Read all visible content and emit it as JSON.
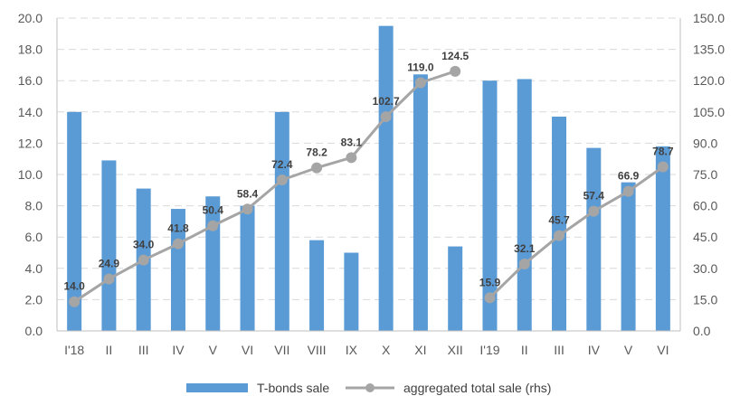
{
  "chart_data": {
    "type": "bar",
    "categories": [
      "I'18",
      "II",
      "III",
      "IV",
      "V",
      "VI",
      "VII",
      "VIII",
      "IX",
      "X",
      "XI",
      "XII",
      "I'19",
      "II",
      "III",
      "IV",
      "V",
      "VI"
    ],
    "series": [
      {
        "name": "T-bonds sale",
        "type": "bar",
        "axis": "left",
        "color": "#5b9bd5",
        "values": [
          14.0,
          10.9,
          9.1,
          7.8,
          8.6,
          8.0,
          14.0,
          5.8,
          5.0,
          19.5,
          16.4,
          5.4,
          16.0,
          16.1,
          13.7,
          11.7,
          9.5,
          11.8
        ]
      },
      {
        "name": "aggregated total sale (rhs)",
        "type": "line",
        "axis": "right",
        "color": "#a5a5a5",
        "values": [
          14.0,
          24.9,
          34.0,
          41.8,
          50.4,
          58.4,
          72.4,
          78.2,
          83.1,
          102.7,
          119.0,
          124.5,
          15.9,
          32.1,
          45.7,
          57.4,
          66.9,
          78.7
        ],
        "segments": [
          [
            0,
            11
          ],
          [
            12,
            17
          ]
        ],
        "labels": [
          "14.0",
          "24.9",
          "34.0",
          "41.8",
          "50.4",
          "58.4",
          "72.4",
          "78.2",
          "83.1",
          "102.7",
          "119.0",
          "124.5",
          "15.9",
          "32.1",
          "45.7",
          "57.4",
          "66.9",
          "78.7"
        ]
      }
    ],
    "y_left": {
      "min": 0,
      "max": 20,
      "step": 2,
      "ticks": [
        "0.0",
        "2.0",
        "4.0",
        "6.0",
        "8.0",
        "10.0",
        "12.0",
        "14.0",
        "16.0",
        "18.0",
        "20.0"
      ]
    },
    "y_right": {
      "min": 0,
      "max": 150,
      "step": 15,
      "ticks": [
        "0.0",
        "15.0",
        "30.0",
        "45.0",
        "60.0",
        "75.0",
        "90.0",
        "105.0",
        "120.0",
        "135.0",
        "150.0"
      ]
    },
    "grid": true,
    "legend_position": "bottom"
  },
  "legend": {
    "bar_label": "T-bonds sale",
    "line_label": "aggregated total sale (rhs)"
  }
}
